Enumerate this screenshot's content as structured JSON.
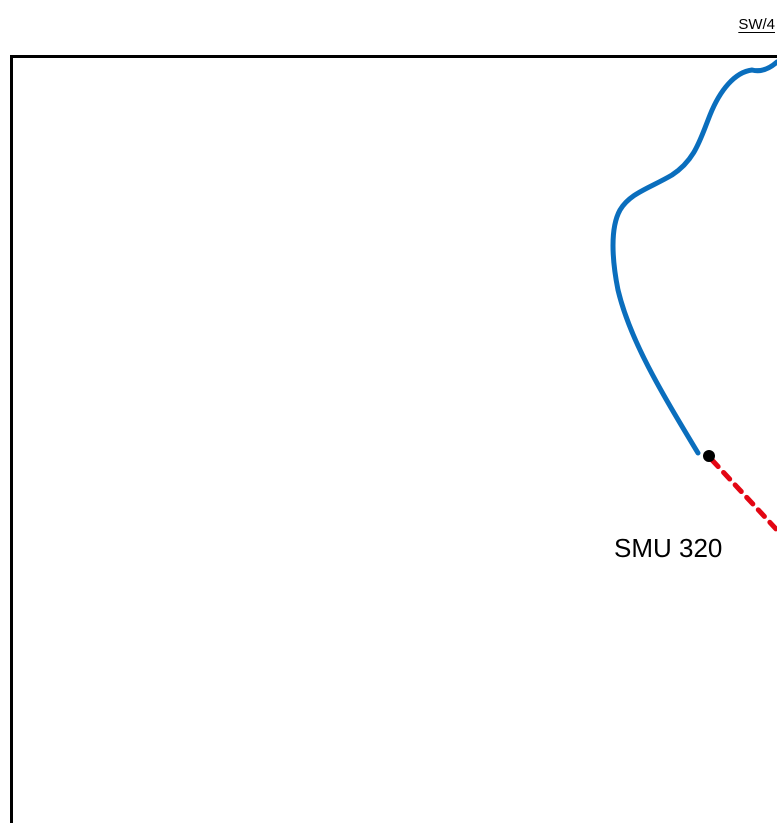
{
  "sheet_ref": "SW/4",
  "unit_label": "SMU 320",
  "colors": {
    "route": "#0a6ebd",
    "boundary_dashed": "#e30613",
    "frame": "#000000",
    "point": "#000000"
  },
  "icons": {
    "route": "route-line-icon",
    "dashed": "dashed-boundary-icon",
    "point": "marker-point-icon"
  }
}
